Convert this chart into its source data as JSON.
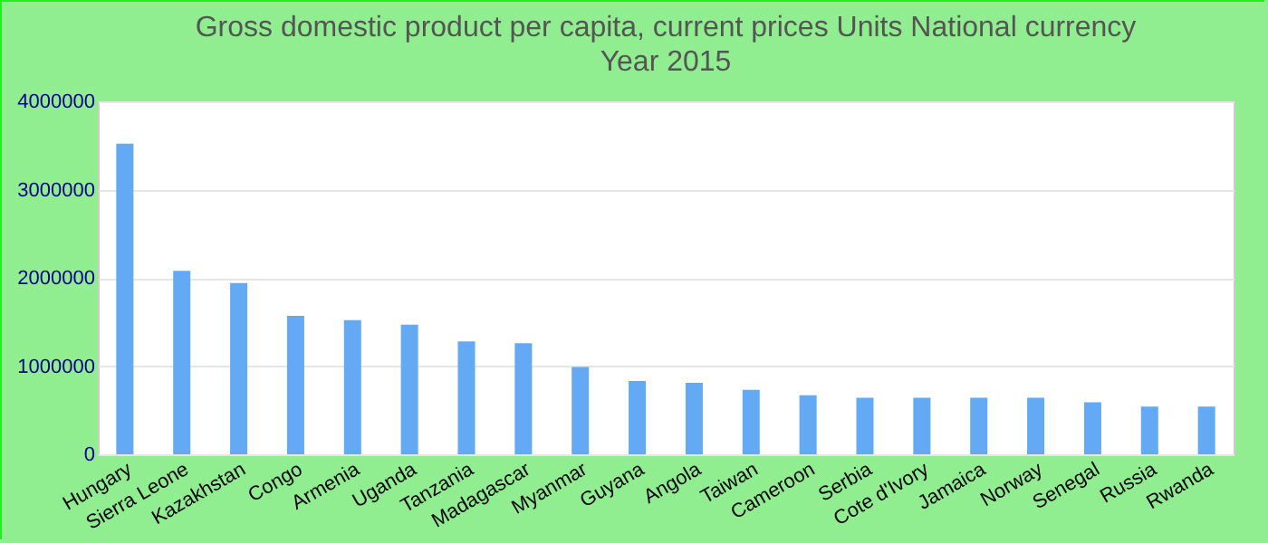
{
  "chart_data": {
    "type": "bar",
    "title": "Gross domestic product per capita, current prices Units National currency",
    "subtitle": "Year 2015",
    "categories": [
      "Hungary",
      "Sierra Leone",
      "Kazakhstan",
      "Congo",
      "Armenia",
      "Uganda",
      "Tanzania",
      "Madagascar",
      "Myanmar",
      "Guyana",
      "Angola",
      "Taiwan",
      "Cameroon",
      "Serbia",
      "Cote d'Ivory",
      "Jamaica",
      "Norway",
      "Senegal",
      "Russia",
      "Rwanda"
    ],
    "values": [
      3520000,
      2080000,
      1940000,
      1570000,
      1520000,
      1470000,
      1280000,
      1260000,
      990000,
      830000,
      810000,
      730000,
      670000,
      640000,
      640000,
      640000,
      640000,
      590000,
      540000,
      540000
    ],
    "color": "#63a9f4",
    "ylim": [
      0,
      4000000
    ],
    "yticks": [
      0,
      1000000,
      2000000,
      3000000,
      4000000
    ],
    "grid": "y"
  }
}
